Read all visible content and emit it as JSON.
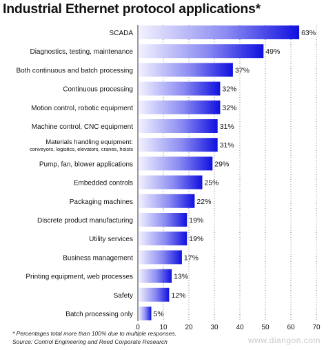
{
  "title": "Industrial Ethernet protocol applications*",
  "footnotes": {
    "note": "* Percentages total more than 100% due to multiple responses.",
    "source": "Source: Control Engineering and Reed Corporate Research"
  },
  "watermark": "www.diangon.com",
  "colors": {
    "bar_dark": "#1010e0",
    "bar_light": "#f2f2ff",
    "grid": "#555555"
  },
  "chart_data": {
    "type": "bar",
    "orientation": "horizontal",
    "title": "Industrial Ethernet protocol applications*",
    "categories": [
      [
        "SCADA"
      ],
      [
        "Diagnostics, testing, maintenance"
      ],
      [
        "Both continuous and batch processing"
      ],
      [
        "Continuous processing"
      ],
      [
        "Motion control, robotic equipment"
      ],
      [
        "Machine control, CNC equipment"
      ],
      [
        "Materials handling equipment:",
        "conveyors, logistics, elevators, cranes, hoists"
      ],
      [
        "Pump, fan, blower applications"
      ],
      [
        "Embedded controls"
      ],
      [
        "Packaging machines"
      ],
      [
        "Discrete product manufacturing"
      ],
      [
        "Utility services"
      ],
      [
        "Business management"
      ],
      [
        "Printing equipment, web processes"
      ],
      [
        "Safety"
      ],
      [
        "Batch processing only"
      ]
    ],
    "values": [
      63,
      49,
      37,
      32,
      32,
      31,
      31,
      29,
      25,
      22,
      19,
      19,
      17,
      13,
      12,
      5
    ],
    "value_labels": [
      "63%",
      "49%",
      "37%",
      "32%",
      "32%",
      "31%",
      "31%",
      "29%",
      "25%",
      "22%",
      "19%",
      "19%",
      "17%",
      "13%",
      "12%",
      "5%"
    ],
    "xlim": [
      0,
      70
    ],
    "xticks": [
      0,
      10,
      20,
      30,
      40,
      50,
      60,
      70
    ],
    "grid": "vertical dotted",
    "legend": "none"
  }
}
